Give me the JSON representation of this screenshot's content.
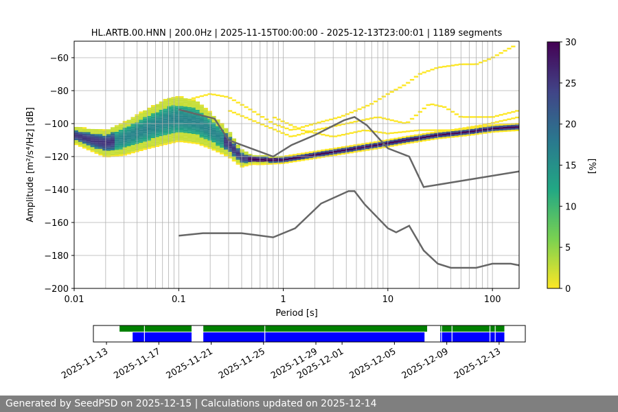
{
  "chart_data": [
    {
      "type": "heatmap",
      "title": "HL.ARTB.00.HNN | 200.0Hz | 2025-11-15T00:00:00 - 2025-12-13T23:00:01 | 1189 segments",
      "xlabel": "Period [s]",
      "ylabel": "Amplitude [m²/s⁴/Hz] [dB]",
      "xscale": "log",
      "xlim": [
        0.01,
        180
      ],
      "ylim": [
        -200,
        -50
      ],
      "xticks": [
        {
          "v": 0.01,
          "label": "0.01"
        },
        {
          "v": 0.1,
          "label": "0.1"
        },
        {
          "v": 1,
          "label": "1"
        },
        {
          "v": 10,
          "label": "10"
        },
        {
          "v": 100,
          "label": "100"
        }
      ],
      "yticks": [
        -200,
        -180,
        -160,
        -140,
        -120,
        -100,
        -80,
        -60
      ],
      "grid": true,
      "colorbar": {
        "label": "[%]",
        "range": [
          0,
          30
        ],
        "ticks": [
          0,
          5,
          10,
          15,
          20,
          25,
          30
        ],
        "colors": [
          "#fde725",
          "#7ad151",
          "#22a884",
          "#2a788e",
          "#414487",
          "#440154"
        ]
      },
      "mode_curve": [
        [
          0.01,
          -107
        ],
        [
          0.015,
          -110
        ],
        [
          0.02,
          -112
        ],
        [
          0.03,
          -109
        ],
        [
          0.05,
          -103
        ],
        [
          0.08,
          -98
        ],
        [
          0.1,
          -97
        ],
        [
          0.15,
          -99
        ],
        [
          0.2,
          -104
        ],
        [
          0.3,
          -112
        ],
        [
          0.4,
          -121
        ],
        [
          0.6,
          -122
        ],
        [
          1,
          -122
        ],
        [
          2,
          -119
        ],
        [
          4,
          -116
        ],
        [
          8,
          -113
        ],
        [
          15,
          -110
        ],
        [
          30,
          -107
        ],
        [
          60,
          -105
        ],
        [
          100,
          -103
        ],
        [
          180,
          -102
        ]
      ],
      "spread_width_db": [
        [
          0.01,
          5
        ],
        [
          0.03,
          10
        ],
        [
          0.08,
          14
        ],
        [
          0.15,
          13
        ],
        [
          0.3,
          8
        ],
        [
          0.5,
          3
        ],
        [
          1,
          2
        ],
        [
          4,
          2
        ],
        [
          20,
          2
        ],
        [
          100,
          2
        ],
        [
          180,
          2
        ]
      ],
      "outlier_bands": [
        [
          [
            0.13,
            -85
          ],
          [
            0.2,
            -82
          ],
          [
            0.3,
            -84
          ],
          [
            0.5,
            -92
          ],
          [
            0.8,
            -100
          ],
          [
            1.2,
            -104
          ],
          [
            2,
            -100
          ],
          [
            3.5,
            -96
          ],
          [
            5,
            -92
          ],
          [
            7,
            -88
          ],
          [
            10,
            -82
          ],
          [
            15,
            -76
          ],
          [
            20,
            -70
          ],
          [
            30,
            -66
          ],
          [
            50,
            -64
          ],
          [
            70,
            -64
          ],
          [
            100,
            -60
          ],
          [
            130,
            -56
          ],
          [
            160,
            -53
          ]
        ],
        [
          [
            0.3,
            -92
          ],
          [
            0.6,
            -100
          ],
          [
            1.2,
            -108
          ],
          [
            2,
            -104
          ],
          [
            4,
            -100
          ],
          [
            8,
            -96
          ],
          [
            15,
            -100
          ],
          [
            25,
            -88
          ],
          [
            35,
            -90
          ],
          [
            50,
            -96
          ],
          [
            100,
            -96
          ],
          [
            180,
            -92
          ]
        ],
        [
          [
            0.8,
            -96
          ],
          [
            1.5,
            -104
          ],
          [
            3,
            -108
          ],
          [
            6,
            -104
          ],
          [
            10,
            -106
          ],
          [
            20,
            -104
          ],
          [
            40,
            -104
          ],
          [
            80,
            -101
          ],
          [
            180,
            -96
          ]
        ]
      ],
      "reference_curves": [
        {
          "name": "upper-limit",
          "points": [
            [
              0.1,
              -91.5
            ],
            [
              0.22,
              -97
            ],
            [
              0.3,
              -110
            ],
            [
              0.4,
              -113
            ],
            [
              0.8,
              -120
            ],
            [
              1.2,
              -113
            ],
            [
              2,
              -107
            ],
            [
              3.8,
              -98
            ],
            [
              4.8,
              -96
            ],
            [
              6.3,
              -101
            ],
            [
              10,
              -115
            ],
            [
              16,
              -120
            ],
            [
              22,
              -138.5
            ],
            [
              180,
              -129
            ]
          ]
        },
        {
          "name": "lower-limit",
          "points": [
            [
              0.1,
              -168
            ],
            [
              0.17,
              -166.5
            ],
            [
              0.4,
              -166.5
            ],
            [
              0.8,
              -169
            ],
            [
              1.3,
              -163.5
            ],
            [
              2.3,
              -148.5
            ],
            [
              4.2,
              -141
            ],
            [
              4.8,
              -141
            ],
            [
              6,
              -149
            ],
            [
              10,
              -163.5
            ],
            [
              12,
              -166
            ],
            [
              16,
              -162
            ],
            [
              22,
              -177
            ],
            [
              30,
              -185
            ],
            [
              40,
              -187.5
            ],
            [
              70,
              -187.5
            ],
            [
              100,
              -185
            ],
            [
              150,
              -185
            ],
            [
              180,
              -186
            ]
          ]
        }
      ],
      "segment_lines_period": [
        0.02,
        0.03,
        0.04,
        0.05,
        0.06,
        0.07,
        0.08,
        0.09,
        0.2,
        0.3,
        0.4,
        0.5,
        0.6,
        0.7,
        0.8,
        0.9,
        2,
        3,
        4,
        5,
        6,
        7,
        8,
        9,
        20,
        30,
        40,
        50,
        60,
        70,
        80,
        90
      ]
    },
    {
      "type": "timeline",
      "xlim_days": [
        -3,
        30
      ],
      "ticks": [
        {
          "day": -2,
          "label": "2025-11-13"
        },
        {
          "day": 2,
          "label": "2025-11-17"
        },
        {
          "day": 6,
          "label": "2025-11-21"
        },
        {
          "day": 10,
          "label": "2025-11-25"
        },
        {
          "day": 14,
          "label": "2025-11-29"
        },
        {
          "day": 16,
          "label": "2025-12-01"
        },
        {
          "day": 20,
          "label": "2025-12-05"
        },
        {
          "day": 24,
          "label": "2025-12-09"
        },
        {
          "day": 28,
          "label": "2025-12-13"
        }
      ],
      "day0_label": "2025-11-15",
      "available_segments_days": [
        [
          -1,
          4.5
        ],
        [
          5.4,
          22.5
        ],
        [
          23.5,
          28.4
        ]
      ],
      "used_segments_days": [
        [
          0.0,
          4.5
        ],
        [
          5.4,
          22.3
        ],
        [
          23.5,
          28.4
        ]
      ],
      "gaps_days": [
        0.9,
        10.1,
        23.6,
        24.4,
        27.3,
        27.7
      ],
      "colors": {
        "available": "#008000",
        "used": "#0000ff"
      }
    }
  ],
  "footer": {
    "text": "Generated by SeedPSD on 2025-12-15 | Calculations updated on 2025-12-14"
  }
}
